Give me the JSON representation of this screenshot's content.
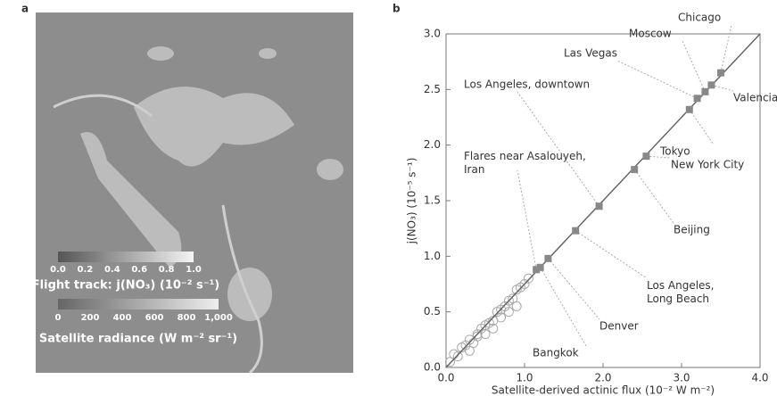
{
  "panel_a": {
    "label": "a",
    "colorbar_1": {
      "ticks": [
        "0.0",
        "0.2",
        "0.4",
        "0.6",
        "0.8",
        "1.0"
      ],
      "title": "Flight track: j(NO₃) (10⁻² s⁻¹)"
    },
    "colorbar_2": {
      "ticks": [
        "0",
        "200",
        "400",
        "600",
        "800",
        "1,000"
      ],
      "title": "Satellite radiance (W m⁻² sr⁻¹)"
    }
  },
  "chart_data": {
    "type": "scatter",
    "panel_label": "b",
    "x_label": "Satellite-derived actinic flux (10⁻² W m⁻²)",
    "y_label": "j(NO₃) (10⁻⁵ s⁻¹)",
    "xlim": [
      0,
      4
    ],
    "xticks": [
      {
        "value": 0,
        "label": "0.0"
      },
      {
        "value": 1,
        "label": "1.0"
      },
      {
        "value": 2,
        "label": "2.0"
      },
      {
        "value": 3,
        "label": "3.0"
      },
      {
        "value": 4,
        "label": "4.0"
      }
    ],
    "ylim": [
      0,
      3
    ],
    "yticks": [
      {
        "value": 0,
        "label": "0.0"
      },
      {
        "value": 0.5,
        "label": "0.5"
      },
      {
        "value": 1,
        "label": "1.0"
      },
      {
        "value": 1.5,
        "label": "1.5"
      },
      {
        "value": 2,
        "label": "2.0"
      },
      {
        "value": 2.5,
        "label": "2.5"
      },
      {
        "value": 3,
        "label": "3.0"
      }
    ],
    "fit_line": {
      "x": [
        0,
        4
      ],
      "y": [
        0,
        3
      ]
    },
    "color": "#888888",
    "points": [
      {
        "label": "Chicago",
        "x": 3.5,
        "y": 2.65
      },
      {
        "label": "Moscow",
        "x": 3.3,
        "y": 2.48
      },
      {
        "label": "Las Vegas",
        "x": 3.2,
        "y": 2.42
      },
      {
        "label": "Valencia",
        "x": 3.38,
        "y": 2.54
      },
      {
        "label": "Los Angeles, downtown",
        "x": 1.95,
        "y": 1.45
      },
      {
        "label": "Tokyo",
        "x": 3.1,
        "y": 2.32
      },
      {
        "label": "New York City",
        "x": 2.55,
        "y": 1.9
      },
      {
        "label": "Flares near Asalouyeh, Iran",
        "x": 1.15,
        "y": 0.88
      },
      {
        "label": "Beijing",
        "x": 2.4,
        "y": 1.78
      },
      {
        "label": "Los Angeles, Long Beach",
        "x": 1.65,
        "y": 1.23
      },
      {
        "label": "Denver",
        "x": 1.3,
        "y": 0.98
      },
      {
        "label": "Bangkok",
        "x": 1.2,
        "y": 0.9
      }
    ],
    "cloud": {
      "x": [
        0.05,
        0.1,
        0.15,
        0.2,
        0.25,
        0.3,
        0.35,
        0.4,
        0.45,
        0.5,
        0.55,
        0.6,
        0.65,
        0.7,
        0.75,
        0.8,
        0.85,
        0.9,
        0.95,
        1.0,
        0.3,
        0.5,
        0.7,
        0.9,
        0.6,
        0.8,
        1.05,
        0.4
      ],
      "y": [
        0.05,
        0.12,
        0.1,
        0.18,
        0.2,
        0.25,
        0.22,
        0.3,
        0.35,
        0.38,
        0.4,
        0.42,
        0.5,
        0.52,
        0.55,
        0.6,
        0.62,
        0.7,
        0.72,
        0.75,
        0.15,
        0.3,
        0.45,
        0.55,
        0.35,
        0.5,
        0.8,
        0.28
      ]
    }
  }
}
